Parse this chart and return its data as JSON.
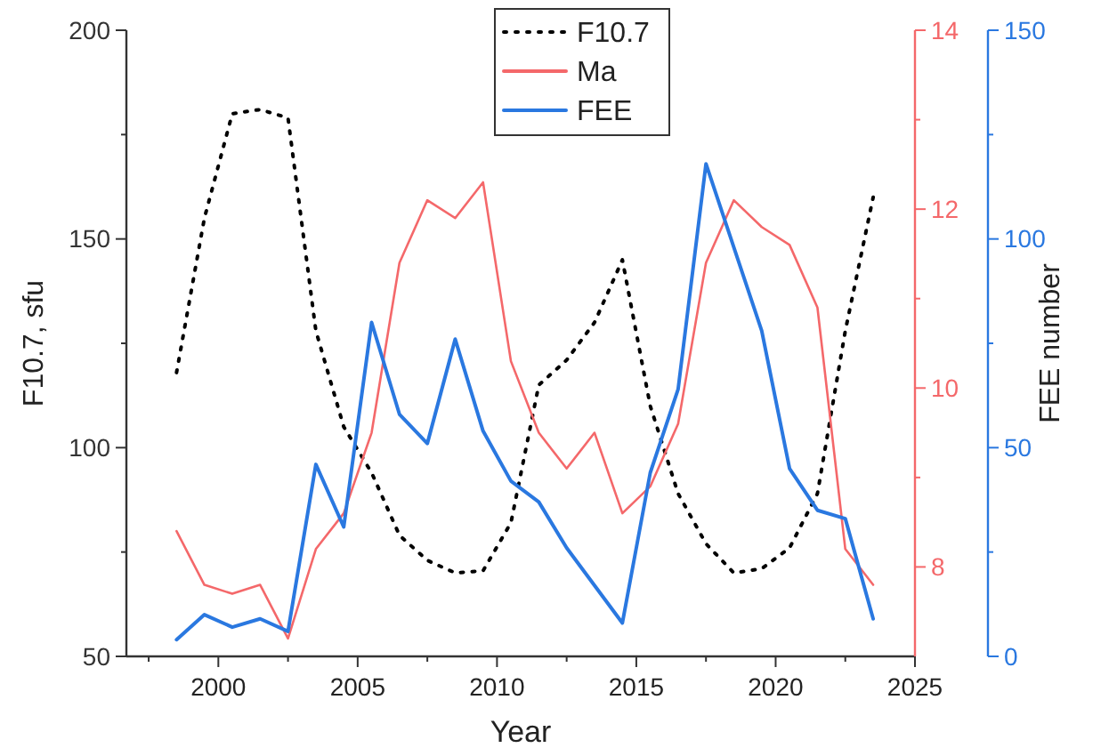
{
  "chart_data": {
    "type": "line",
    "xlabel": "Year",
    "ylabel": "F10.7, sfu",
    "y3label": "FEE number",
    "x": [
      1998.5,
      1999.5,
      2000.5,
      2001.5,
      2002.5,
      2003.5,
      2004.5,
      2005.5,
      2006.5,
      2007.5,
      2008.5,
      2009.5,
      2010.5,
      2011.5,
      2012.5,
      2013.5,
      2014.5,
      2015.5,
      2016.5,
      2017.5,
      2018.5,
      2019.5,
      2020.5,
      2021.5,
      2022.5,
      2023.5
    ],
    "series": [
      {
        "name": "F10.7",
        "color": "#000000",
        "line_style": "dotted",
        "values": [
          118,
          155,
          180,
          181,
          179,
          128,
          105,
          94,
          79,
          73,
          70,
          70.5,
          82,
          115,
          121,
          130,
          145,
          110,
          89,
          77,
          70,
          71,
          76,
          89,
          128,
          160
        ]
      },
      {
        "name": "Ma",
        "color": "#f4686a",
        "axis": "y2",
        "values": [
          8.4,
          7.8,
          7.7,
          7.8,
          7.2,
          8.2,
          8.6,
          9.5,
          11.4,
          12.1,
          11.9,
          12.3,
          10.3,
          9.5,
          9.1,
          9.5,
          8.6,
          8.9,
          9.6,
          11.4,
          12.1,
          11.8,
          11.6,
          10.9,
          8.2,
          7.8
        ]
      },
      {
        "name": "FEE",
        "color": "#2a78e0",
        "axis": "y3",
        "values": [
          4,
          10,
          7,
          9,
          6,
          46,
          31,
          80,
          58,
          51,
          76,
          54,
          42,
          37,
          26,
          17,
          8,
          44,
          64,
          118,
          98,
          78,
          45,
          35,
          33,
          9
        ]
      }
    ],
    "xlim": [
      1996.7,
      2025
    ],
    "xticks": [
      {
        "value": 1997.5,
        "label": null
      },
      2000,
      {
        "value": 2002.5,
        "label": null
      },
      2005,
      {
        "value": 2007.5,
        "label": null
      },
      2010,
      {
        "value": 2012.5,
        "label": null
      },
      2015,
      {
        "value": 2017.5,
        "label": null
      },
      2020,
      {
        "value": 2022.5,
        "label": null
      },
      2025
    ],
    "ylim": [
      50,
      200
    ],
    "yticks": [
      50,
      {
        "value": 75,
        "label": null
      },
      100,
      {
        "value": 125,
        "label": null
      },
      150,
      {
        "value": 175,
        "label": null
      },
      200
    ],
    "y2lim": [
      7,
      14
    ],
    "y2ticks": [
      8,
      {
        "value": 9,
        "label": null
      },
      10,
      {
        "value": 11,
        "label": null
      },
      12,
      {
        "value": 13,
        "label": null
      },
      14
    ],
    "y3lim": [
      0,
      150
    ],
    "y3ticks": [
      0,
      {
        "value": 25,
        "label": null
      },
      50,
      {
        "value": 75,
        "label": null
      },
      100,
      {
        "value": 125,
        "label": null
      },
      150
    ],
    "legend": "top",
    "grid": false
  }
}
